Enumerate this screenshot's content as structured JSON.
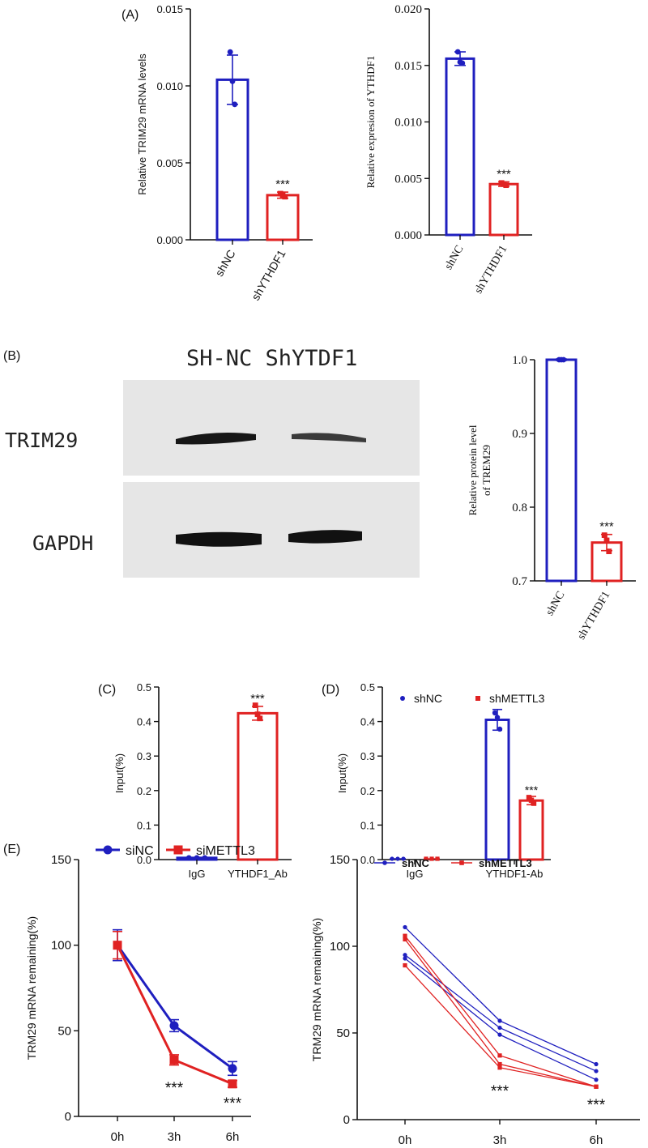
{
  "colors": {
    "blue": "#1f1fbf",
    "red": "#e02222",
    "axis": "#111111",
    "blot_bg": "#e6e6e6",
    "band": "#161616"
  },
  "panel_labels": {
    "A": "(A)",
    "B": "(B)",
    "C": "(C)",
    "D": "(D)",
    "E": "(E)"
  },
  "chart_data": [
    {
      "id": "A1",
      "type": "bar",
      "categories": [
        "shNC",
        "shYTHDF1"
      ],
      "values": [
        0.0104,
        0.0029
      ],
      "errors": [
        0.0016,
        0.0002
      ],
      "points": [
        [
          0.0122,
          0.0103,
          0.0088
        ],
        [
          0.003,
          0.0029,
          0.0028
        ]
      ],
      "ylabel": "Relative  TRIM29 mRNA levels",
      "ylim": [
        0,
        0.015
      ],
      "yticks": [
        "0.000",
        "0.005",
        "0.010",
        "0.015"
      ],
      "significance": [
        "",
        "***"
      ],
      "colors": [
        "#1f1fbf",
        "#e02222"
      ]
    },
    {
      "id": "A2",
      "type": "bar",
      "categories": [
        "shNC",
        "shYTHDF1"
      ],
      "values": [
        0.0156,
        0.0045
      ],
      "errors": [
        0.0006,
        0.0002
      ],
      "points": [
        [
          0.0162,
          0.0153,
          0.0152
        ],
        [
          0.0046,
          0.0045,
          0.0044
        ]
      ],
      "ylabel": "Relative expresion of YTHDF1",
      "ylim": [
        0,
        0.02
      ],
      "yticks": [
        "0.000",
        "0.005",
        "0.010",
        "0.015",
        "0.020"
      ],
      "significance": [
        "",
        "***"
      ],
      "colors": [
        "#1f1fbf",
        "#e02222"
      ]
    },
    {
      "id": "B",
      "type": "bar",
      "categories": [
        "shNC",
        "shYTHDF1"
      ],
      "values": [
        1.0,
        0.752
      ],
      "errors": [
        0.001,
        0.011
      ],
      "points": [
        [
          1.0,
          1.0,
          1.0
        ],
        [
          0.762,
          0.755,
          0.74
        ]
      ],
      "ylabel": "Relative protein level of TREM29",
      "ylabel_lines": [
        "Relative protein level",
        "of TREM29"
      ],
      "ylim": [
        0.7,
        1.0
      ],
      "yticks": [
        "0.7",
        "0.8",
        "0.9",
        "1.0"
      ],
      "significance": [
        "",
        "***"
      ],
      "colors": [
        "#1f1fbf",
        "#e02222"
      ]
    },
    {
      "id": "C",
      "type": "bar",
      "categories": [
        "IgG",
        "YTHDF1_Ab"
      ],
      "values": [
        0.005,
        0.424
      ],
      "errors": [
        0.001,
        0.02
      ],
      "points": [
        [
          0.005,
          0.005,
          0.005
        ],
        [
          0.447,
          0.421,
          0.409
        ]
      ],
      "ylabel": "Input(%)",
      "ylim": [
        0,
        0.5
      ],
      "yticks": [
        "0.0",
        "0.1",
        "0.2",
        "0.3",
        "0.4",
        "0.5"
      ],
      "significance": [
        "",
        "***"
      ],
      "colors": [
        "#1f1fbf",
        "#e02222"
      ]
    },
    {
      "id": "D",
      "type": "bar",
      "categories": [
        "IgG",
        "YTHDF1-Ab"
      ],
      "series": [
        {
          "name": "shNC",
          "values": [
            0.004,
            0.405
          ],
          "errors": [
            0,
            0.03
          ],
          "points": [
            [
              0.004,
              0.004,
              0.004
            ],
            [
              0.425,
              0.412,
              0.378
            ]
          ]
        },
        {
          "name": "shMETTL3",
          "values": [
            0.004,
            0.171
          ],
          "errors": [
            0,
            0.012
          ],
          "points": [
            [
              0.004,
              0.004,
              0.004
            ],
            [
              0.18,
              0.172,
              0.163
            ]
          ]
        }
      ],
      "ylabel": "Input(%)",
      "ylim": [
        0,
        0.5
      ],
      "yticks": [
        "0.0",
        "0.1",
        "0.2",
        "0.3",
        "0.4",
        "0.5"
      ],
      "significance": [
        "",
        "***"
      ],
      "legend_position": "top",
      "colors": [
        "#1f1fbf",
        "#e02222"
      ]
    },
    {
      "id": "E1",
      "type": "line",
      "x": [
        "0h",
        "3h",
        "6h"
      ],
      "series": [
        {
          "name": "siNC",
          "values": [
            100,
            53,
            28
          ],
          "errors": [
            9,
            3.5,
            4
          ]
        },
        {
          "name": "siMETTL3",
          "values": [
            100,
            33,
            19
          ],
          "errors": [
            8,
            3,
            2
          ]
        }
      ],
      "ylabel": "TRM29 mRNA remaining(%)",
      "ylim": [
        0,
        150
      ],
      "yticks": [
        "0",
        "50",
        "100",
        "150"
      ],
      "significance": [
        "",
        "***",
        "***"
      ],
      "legend_position": "top",
      "colors": [
        "#1f1fbf",
        "#e02222"
      ]
    },
    {
      "id": "E2",
      "type": "line",
      "x": [
        "0h",
        "3h",
        "6h"
      ],
      "series": [
        {
          "name": "shNC",
          "replicates": [
            [
              111,
              57,
              32
            ],
            [
              95,
              53,
              28
            ],
            [
              93,
              49,
              23
            ]
          ]
        },
        {
          "name": "shMETTL3",
          "replicates": [
            [
              106,
              37,
              19
            ],
            [
              104,
              32,
              19
            ],
            [
              89,
              30,
              19
            ]
          ]
        }
      ],
      "ylabel": "TRM29 mRNA remaining(%)",
      "ylim": [
        0,
        150
      ],
      "yticks": [
        "0",
        "50",
        "100",
        "150"
      ],
      "significance": [
        "",
        "***",
        "***"
      ],
      "legend_position": "top",
      "colors": [
        "#1f1fbf",
        "#e02222"
      ]
    }
  ],
  "blot": {
    "header": "SH-NC ShYTDF1",
    "labels": [
      "TRIM29",
      "GAPDH"
    ]
  }
}
